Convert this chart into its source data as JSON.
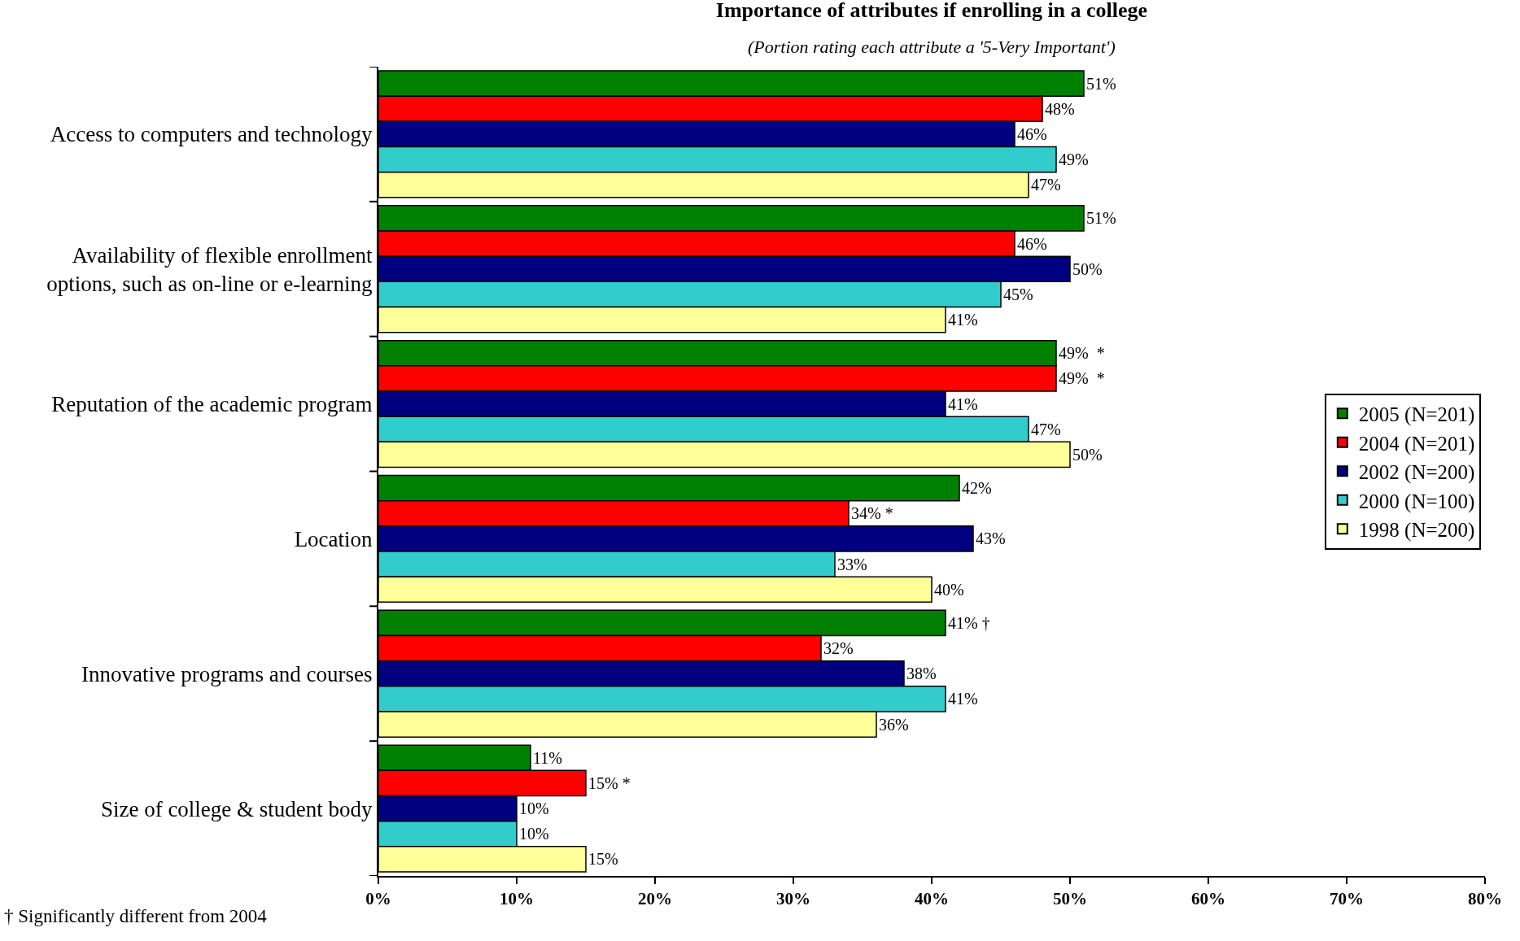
{
  "chart_data": {
    "type": "bar",
    "orientation": "horizontal",
    "title": "Importance of attributes if enrolling in a college",
    "subtitle": "(Portion rating each attribute a '5-Very Important')",
    "categories": [
      "Access to computers and technology",
      "Availability of flexible enrollment options, such as on-line or e-learning",
      "Reputation of the academic program",
      "Location",
      "Innovative programs and courses",
      "Size of college & student body"
    ],
    "series": [
      {
        "name": "2005 (N=201)",
        "color": "#008000",
        "values": [
          51,
          51,
          49,
          42,
          41,
          11
        ],
        "value_labels": [
          "51%",
          "51%",
          "49%  *",
          "42%",
          "41% †",
          "11%"
        ]
      },
      {
        "name": "2004 (N=201)",
        "color": "#ff0000",
        "values": [
          48,
          46,
          49,
          34,
          32,
          15
        ],
        "value_labels": [
          "48%",
          "46%",
          "49%  *",
          "34% *",
          "32%",
          "15% *"
        ]
      },
      {
        "name": "2002 (N=200)",
        "color": "#000080",
        "values": [
          46,
          50,
          41,
          43,
          38,
          10
        ],
        "value_labels": [
          "46%",
          "50%",
          "41%",
          "43%",
          "38%",
          "10%"
        ]
      },
      {
        "name": "2000 (N=100)",
        "color": "#33cccc",
        "values": [
          49,
          45,
          47,
          33,
          41,
          10
        ],
        "value_labels": [
          "49%",
          "45%",
          "47%",
          "33%",
          "41%",
          "10%"
        ]
      },
      {
        "name": "1998 (N=200)",
        "color": "#ffff99",
        "values": [
          47,
          41,
          50,
          40,
          36,
          15
        ],
        "value_labels": [
          "47%",
          "41%",
          "50%",
          "40%",
          "36%",
          "15%"
        ]
      }
    ],
    "xlim": [
      0,
      80
    ],
    "xticks": [
      {
        "value": 0,
        "label": "0%"
      },
      {
        "value": 10,
        "label": "10%"
      },
      {
        "value": 20,
        "label": "20%"
      },
      {
        "value": 30,
        "label": "30%"
      },
      {
        "value": 40,
        "label": "40%"
      },
      {
        "value": 50,
        "label": "50%"
      },
      {
        "value": 60,
        "label": "60%"
      },
      {
        "value": 70,
        "label": "70%"
      },
      {
        "value": 80,
        "label": "80%"
      }
    ],
    "grid": false,
    "legend": "right",
    "annotations": [
      "† Significantly different from 2004"
    ]
  }
}
